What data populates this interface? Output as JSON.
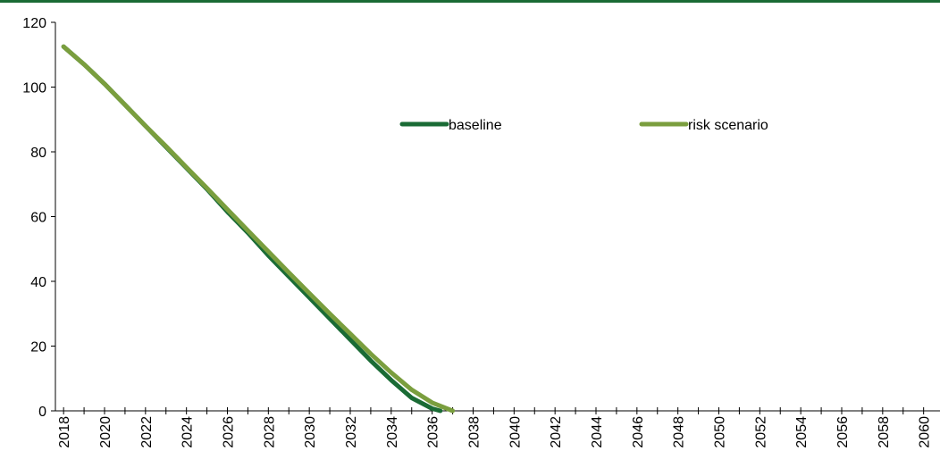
{
  "chart_data": {
    "type": "line",
    "title": "",
    "xlabel": "",
    "ylabel": "",
    "xlim": [
      2017.6,
      2060.8
    ],
    "ylim": [
      0,
      120
    ],
    "y_ticks": [
      0,
      20,
      40,
      60,
      80,
      100,
      120
    ],
    "x_ticks": [
      2018,
      2020,
      2022,
      2024,
      2026,
      2028,
      2030,
      2032,
      2034,
      2036,
      2038,
      2040,
      2042,
      2044,
      2046,
      2048,
      2050,
      2052,
      2054,
      2056,
      2058,
      2060
    ],
    "grid": false,
    "legend_position": "top",
    "series": [
      {
        "name": "baseline",
        "color": "#1a6b35",
        "x": [
          2018,
          2019,
          2020,
          2021,
          2022,
          2023,
          2024,
          2025,
          2026,
          2027,
          2028,
          2029,
          2030,
          2031,
          2032,
          2033,
          2034,
          2035,
          2036,
          2036.4
        ],
        "y": [
          112.5,
          107,
          101,
          94.5,
          88,
          81.5,
          75,
          68.5,
          61.5,
          55,
          48,
          41.5,
          35,
          28.5,
          22,
          15.5,
          9.5,
          4,
          0.7,
          0
        ]
      },
      {
        "name": "risk scenario",
        "color": "#7a9e3e",
        "x": [
          2018,
          2019,
          2020,
          2021,
          2022,
          2023,
          2024,
          2025,
          2026,
          2027,
          2028,
          2029,
          2030,
          2031,
          2032,
          2033,
          2034,
          2035,
          2036,
          2037
        ],
        "y": [
          112.5,
          107,
          101,
          94.5,
          88,
          81.7,
          75.2,
          68.8,
          62.2,
          55.7,
          49.2,
          42.7,
          36.3,
          30,
          23.8,
          17.6,
          11.8,
          6.5,
          2.5,
          0
        ]
      }
    ]
  },
  "colors": {
    "top_bar": "#1a6b35",
    "axis": "#000000"
  }
}
